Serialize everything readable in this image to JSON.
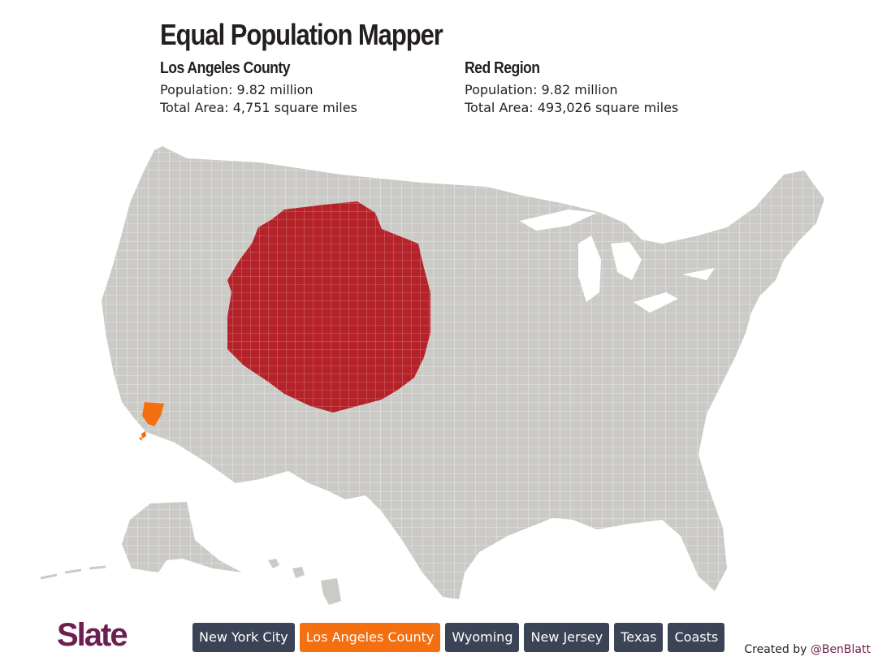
{
  "header": {
    "title": "Equal Population Mapper"
  },
  "left_stat": {
    "name": "Los Angeles County",
    "population": "Population: 9.82 million",
    "area": "Total Area: 4,751 square miles"
  },
  "right_stat": {
    "name": "Red Region",
    "population": "Population: 9.82 million",
    "area": "Total Area: 493,026 square miles"
  },
  "map": {
    "colors": {
      "land": "#cbcac7",
      "region": "#b5232a",
      "county": "#f36f0f",
      "county_lines": "#ffffff"
    }
  },
  "footer": {
    "logo": "Slate",
    "buttons": [
      {
        "label": "New York City",
        "active": false
      },
      {
        "label": "Los Angeles County",
        "active": true
      },
      {
        "label": "Wyoming",
        "active": false
      },
      {
        "label": "New Jersey",
        "active": false
      },
      {
        "label": "Texas",
        "active": false
      },
      {
        "label": "Coasts",
        "active": false
      }
    ],
    "credit_prefix": "Created by",
    "credit_handle": "@BenBlatt"
  }
}
